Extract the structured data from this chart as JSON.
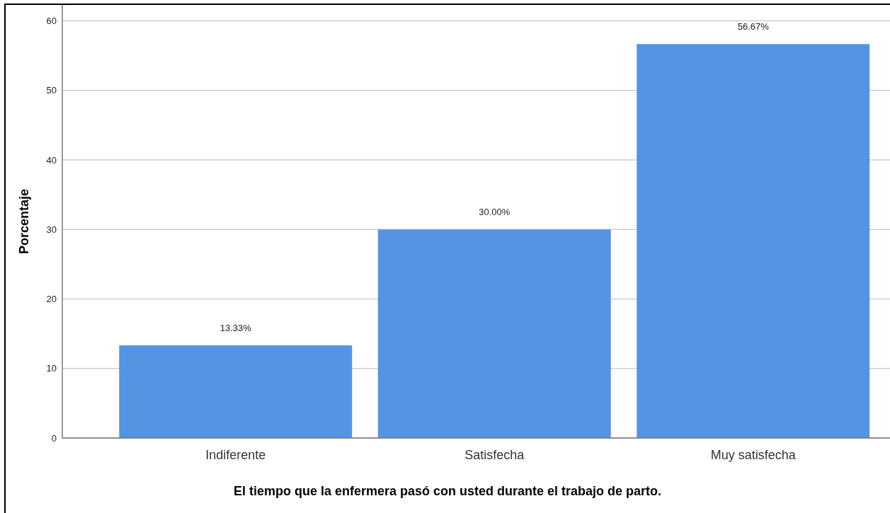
{
  "chart_data": {
    "type": "bar",
    "xlabel": "El tiempo que la enfermera pasó con usted durante el trabajo de parto.",
    "ylabel": "Porcentaje",
    "categories": [
      "Indiferente",
      "Satisfecha",
      "Muy satisfecha"
    ],
    "values": [
      13.33,
      30.0,
      56.67
    ],
    "value_labels": [
      "13.33%",
      "30.00%",
      "56.67%"
    ],
    "color": "#5594e2",
    "ylim": [
      0,
      62.3
    ],
    "yticks": [
      0,
      10,
      20,
      30,
      40,
      50,
      60
    ],
    "grid": "y"
  }
}
